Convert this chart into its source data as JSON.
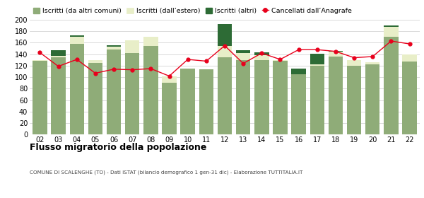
{
  "years": [
    "02",
    "03",
    "04",
    "05",
    "06",
    "07",
    "08",
    "09",
    "10",
    "11",
    "12",
    "13",
    "14",
    "15",
    "16",
    "17",
    "18",
    "19",
    "20",
    "21",
    "22"
  ],
  "iscritti_comuni": [
    128,
    135,
    158,
    125,
    148,
    142,
    155,
    91,
    115,
    114,
    135,
    130,
    130,
    128,
    105,
    120,
    136,
    120,
    123,
    170,
    127
  ],
  "iscritti_estero": [
    2,
    2,
    12,
    5,
    5,
    22,
    16,
    10,
    0,
    0,
    20,
    12,
    8,
    2,
    0,
    3,
    8,
    10,
    3,
    18,
    13
  ],
  "iscritti_altri": [
    0,
    10,
    3,
    0,
    3,
    0,
    0,
    0,
    0,
    0,
    38,
    5,
    5,
    0,
    10,
    18,
    2,
    0,
    0,
    2,
    0
  ],
  "cancellati": [
    143,
    119,
    131,
    107,
    114,
    113,
    115,
    102,
    131,
    128,
    155,
    124,
    142,
    131,
    148,
    148,
    145,
    134,
    136,
    163,
    158
  ],
  "color_comuni": "#8fac78",
  "color_estero": "#e8eec8",
  "color_altri": "#2d6b35",
  "color_cancellati": "#e8001c",
  "ylim": [
    0,
    200
  ],
  "yticks": [
    0,
    20,
    40,
    60,
    80,
    100,
    120,
    140,
    160,
    180,
    200
  ],
  "title": "Flusso migratorio della popolazione",
  "subtitle": "COMUNE DI SCALENGHE (TO) - Dati ISTAT (bilancio demografico 1 gen-31 dic) - Elaborazione TUTTITALIA.IT",
  "legend_labels": [
    "Iscritti (da altri comuni)",
    "Iscritti (dall’estero)",
    "Iscritti (altri)",
    "Cancellati dall’Anagrafe"
  ],
  "bg_color": "#ffffff",
  "grid_color": "#cccccc"
}
